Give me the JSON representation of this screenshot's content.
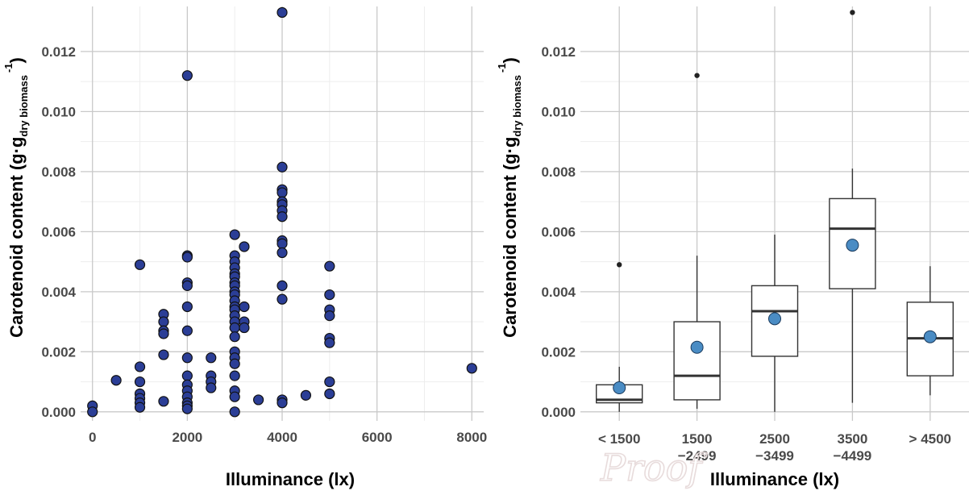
{
  "chart_data": [
    {
      "type": "scatter",
      "xlabel": "Illuminance (lx)",
      "ylabel_main": "Carotenoid content (g·g",
      "ylabel_sub": "dry biomass",
      "ylabel_sup": "-1",
      "ylabel_close": ")",
      "xlim": [
        -250,
        8250
      ],
      "ylim": [
        -0.0003,
        0.0135
      ],
      "xticks": [
        0,
        2000,
        4000,
        6000,
        8000
      ],
      "xtick_labels": [
        "0",
        "2000",
        "4000",
        "6000",
        "8000"
      ],
      "yticks": [
        0,
        0.002,
        0.004,
        0.006,
        0.008,
        0.01,
        0.012
      ],
      "ytick_labels": [
        "0.000",
        "0.002",
        "0.004",
        "0.006",
        "0.008",
        "0.010",
        "0.012"
      ],
      "grid": true,
      "point_color": "#2b3e96",
      "points": [
        [
          0,
          0.0002
        ],
        [
          0,
          0.0
        ],
        [
          500,
          0.00105
        ],
        [
          1000,
          0.0049
        ],
        [
          1000,
          0.0015
        ],
        [
          1000,
          0.001
        ],
        [
          1000,
          0.0006
        ],
        [
          1000,
          0.00045
        ],
        [
          1000,
          0.0003
        ],
        [
          1000,
          0.00015
        ],
        [
          1500,
          0.00325
        ],
        [
          1500,
          0.003
        ],
        [
          1500,
          0.0027
        ],
        [
          1500,
          0.0026
        ],
        [
          1500,
          0.0019
        ],
        [
          1500,
          0.00035
        ],
        [
          2000,
          0.0112
        ],
        [
          2000,
          0.0052
        ],
        [
          2000,
          0.00515
        ],
        [
          2000,
          0.0043
        ],
        [
          2000,
          0.0042
        ],
        [
          2000,
          0.0035
        ],
        [
          2000,
          0.0027
        ],
        [
          2000,
          0.0018
        ],
        [
          2000,
          0.0012
        ],
        [
          2000,
          0.0009
        ],
        [
          2000,
          0.0007
        ],
        [
          2000,
          0.0005
        ],
        [
          2000,
          0.0003
        ],
        [
          2000,
          0.0002
        ],
        [
          2000,
          0.0001
        ],
        [
          2500,
          0.0018
        ],
        [
          2500,
          0.0012
        ],
        [
          2500,
          0.001
        ],
        [
          2500,
          0.0008
        ],
        [
          3000,
          0.0059
        ],
        [
          3000,
          0.0052
        ],
        [
          3000,
          0.005
        ],
        [
          3000,
          0.0048
        ],
        [
          3000,
          0.0046
        ],
        [
          3000,
          0.0045
        ],
        [
          3000,
          0.0043
        ],
        [
          3000,
          0.0042
        ],
        [
          3000,
          0.004
        ],
        [
          3000,
          0.0039
        ],
        [
          3000,
          0.0037
        ],
        [
          3000,
          0.0035
        ],
        [
          3000,
          0.0034
        ],
        [
          3000,
          0.0032
        ],
        [
          3000,
          0.003
        ],
        [
          3000,
          0.0028
        ],
        [
          3000,
          0.0025
        ],
        [
          3000,
          0.002
        ],
        [
          3000,
          0.0018
        ],
        [
          3000,
          0.0016
        ],
        [
          3000,
          0.0012
        ],
        [
          3000,
          0.0007
        ],
        [
          3000,
          0.0005
        ],
        [
          3000,
          0.0
        ],
        [
          3200,
          0.0055
        ],
        [
          3200,
          0.0035
        ],
        [
          3200,
          0.003
        ],
        [
          3200,
          0.0028
        ],
        [
          3500,
          0.0004
        ],
        [
          4000,
          0.0133
        ],
        [
          4000,
          0.00815
        ],
        [
          4000,
          0.0074
        ],
        [
          4000,
          0.0073
        ],
        [
          4000,
          0.007
        ],
        [
          4000,
          0.0069
        ],
        [
          4000,
          0.0067
        ],
        [
          4000,
          0.0065
        ],
        [
          4000,
          0.0057
        ],
        [
          4000,
          0.0056
        ],
        [
          4000,
          0.0053
        ],
        [
          4000,
          0.0042
        ],
        [
          4000,
          0.00375
        ],
        [
          4000,
          0.0004
        ],
        [
          4000,
          0.0003
        ],
        [
          4500,
          0.00055
        ],
        [
          5000,
          0.00485
        ],
        [
          5000,
          0.0039
        ],
        [
          5000,
          0.0034
        ],
        [
          5000,
          0.0032
        ],
        [
          5000,
          0.00245
        ],
        [
          5000,
          0.0023
        ],
        [
          5000,
          0.001
        ],
        [
          5000,
          0.0006
        ],
        [
          8000,
          0.00145
        ]
      ]
    },
    {
      "type": "box",
      "xlabel": "Illuminance (lx)",
      "ylabel_main": "Carotenoid content (g·g",
      "ylabel_sub": "dry biomass",
      "ylabel_sup": "-1",
      "ylabel_close": ")",
      "ylim": [
        -0.0003,
        0.0135
      ],
      "yticks": [
        0,
        0.002,
        0.004,
        0.006,
        0.008,
        0.01,
        0.012
      ],
      "ytick_labels": [
        "0.000",
        "0.002",
        "0.004",
        "0.006",
        "0.008",
        "0.010",
        "0.012"
      ],
      "grid": true,
      "mean_color": "#4a8cc4",
      "categories": [
        {
          "label": [
            "< 1500"
          ],
          "whisker_low": 0.0,
          "q1": 0.0003,
          "median": 0.0004,
          "q3": 0.0009,
          "whisker_high": 0.0015,
          "mean": 0.0008,
          "outliers": [
            0.0049
          ]
        },
        {
          "label": [
            "1500",
            "−2499"
          ],
          "whisker_low": 0.0001,
          "q1": 0.0004,
          "median": 0.0012,
          "q3": 0.003,
          "whisker_high": 0.0052,
          "mean": 0.00215,
          "outliers": [
            0.0112
          ]
        },
        {
          "label": [
            "2500",
            "−3499"
          ],
          "whisker_low": 0.0,
          "q1": 0.00185,
          "median": 0.00335,
          "q3": 0.0042,
          "whisker_high": 0.0059,
          "mean": 0.0031,
          "outliers": []
        },
        {
          "label": [
            "3500",
            "−4499"
          ],
          "whisker_low": 0.0003,
          "q1": 0.0041,
          "median": 0.0061,
          "q3": 0.0071,
          "whisker_high": 0.0081,
          "mean": 0.00555,
          "outliers": [
            0.0133
          ]
        },
        {
          "label": [
            "> 4500"
          ],
          "whisker_low": 0.00055,
          "q1": 0.0012,
          "median": 0.00245,
          "q3": 0.00365,
          "whisker_high": 0.00485,
          "mean": 0.0025,
          "outliers": []
        }
      ]
    }
  ]
}
